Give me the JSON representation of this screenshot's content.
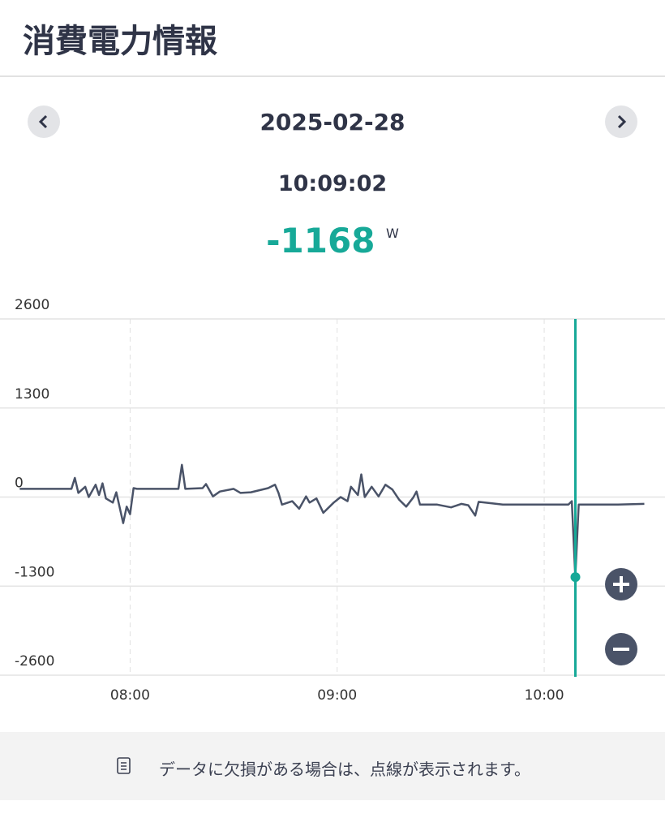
{
  "header": {
    "title": "消費電力情報"
  },
  "date": "2025-02-28",
  "selected": {
    "time": "10:09:02",
    "value": -1168,
    "unit": "W"
  },
  "chart_data": {
    "type": "line",
    "x": [
      "07:28",
      "07:43",
      "07:44",
      "07:45",
      "07:47",
      "07:48",
      "07:50",
      "07:51",
      "07:52",
      "07:53",
      "07:55",
      "07:56",
      "07:58",
      "07:59",
      "08:00",
      "08:01",
      "08:02",
      "08:14",
      "08:15",
      "08:16",
      "08:21",
      "08:22",
      "08:24",
      "08:26",
      "08:30",
      "08:32",
      "08:35",
      "08:40",
      "08:42",
      "08:43",
      "08:44",
      "08:47",
      "08:49",
      "08:51",
      "08:52",
      "08:54",
      "08:56",
      "08:59",
      "09:01",
      "09:03",
      "09:04",
      "09:06",
      "09:07",
      "09:08",
      "09:10",
      "09:12",
      "09:14",
      "09:16",
      "09:18",
      "09:20",
      "09:22",
      "09:23",
      "09:24",
      "09:29",
      "09:33",
      "09:36",
      "09:38",
      "09:40",
      "09:41",
      "09:48",
      "09:57",
      "10:07",
      "10:08",
      "10:09",
      "10:10",
      "10:21",
      "10:29"
    ],
    "series": [
      {
        "color": "#4a5368",
        "values": [
          120,
          120,
          280,
          60,
          150,
          0,
          180,
          30,
          200,
          -20,
          -80,
          70,
          -380,
          -140,
          -250,
          130,
          120,
          120,
          470,
          120,
          130,
          190,
          10,
          80,
          120,
          60,
          70,
          130,
          180,
          60,
          -110,
          -60,
          -170,
          10,
          -80,
          -20,
          -230,
          -80,
          0,
          -60,
          150,
          30,
          330,
          0,
          150,
          10,
          180,
          110,
          -40,
          -140,
          -10,
          80,
          -110,
          -110,
          -150,
          -100,
          -120,
          -270,
          -70,
          -110,
          -110,
          -110,
          -60,
          -1168,
          -110,
          -110,
          -100
        ]
      }
    ],
    "xlim": [
      "07:27",
      "10:35"
    ],
    "ylim": [
      -2600,
      2600
    ],
    "xticks": [
      "08:00",
      "09:00",
      "10:00"
    ],
    "yticks": [
      2600,
      1300,
      0,
      -1300,
      -2600
    ],
    "grid": true,
    "cursor_color": "#17a998"
  },
  "footer": {
    "note": "データに欠損がある場合は、点線が表示されます。"
  }
}
